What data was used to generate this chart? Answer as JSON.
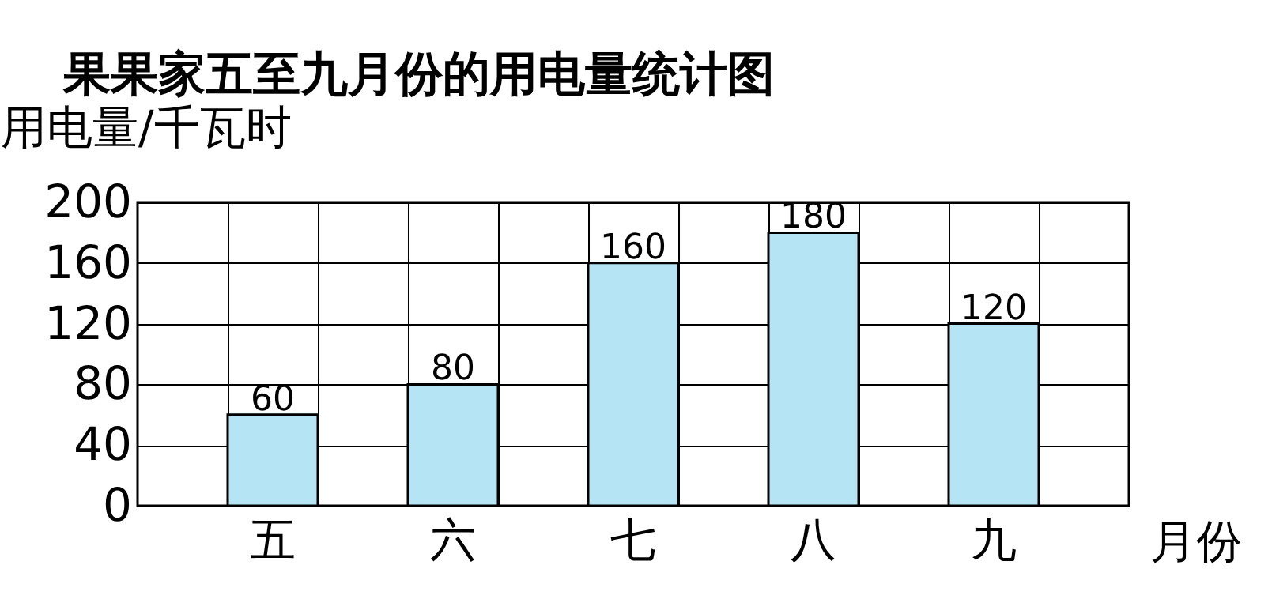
{
  "chart_data": {
    "type": "bar",
    "title": "果果家五至九月份的用电量统计图",
    "xlabel": "月份",
    "ylabel": "用电量/千瓦时",
    "categories": [
      "五",
      "六",
      "七",
      "八",
      "九"
    ],
    "values": [
      60,
      80,
      160,
      180,
      120
    ],
    "color": "#b5e4f4",
    "ylim": [
      0,
      200
    ],
    "yticks": [
      0,
      40,
      80,
      120,
      160,
      200
    ],
    "grid": true,
    "data_labels": true
  }
}
